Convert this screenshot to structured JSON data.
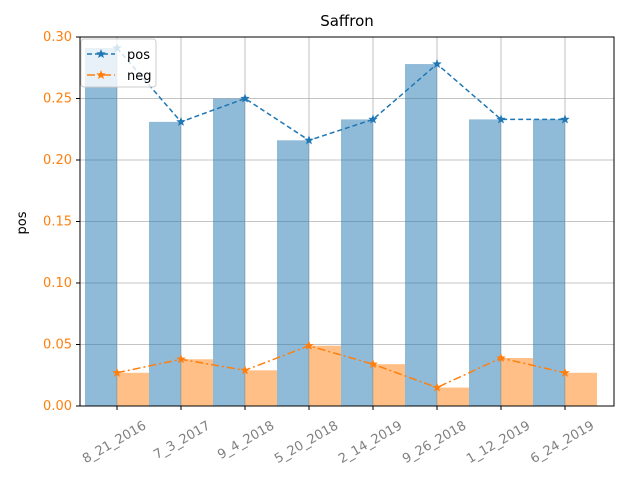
{
  "chart_data": {
    "type": "bar",
    "title": "Saffron",
    "xlabel": "",
    "ylabel": "pos",
    "ylim": [
      0,
      0.3
    ],
    "yticks": [
      "0.00",
      "0.05",
      "0.10",
      "0.15",
      "0.20",
      "0.25",
      "0.30"
    ],
    "grid": true,
    "legend_position": "top-left",
    "categories": [
      "8_21_2016",
      "7_3_2017",
      "9_4_2018",
      "5_20_2018",
      "2_14_2019",
      "9_26_2018",
      "1_12_2019",
      "6_24_2019"
    ],
    "series": [
      {
        "name": "pos",
        "values": [
          0.291,
          0.231,
          0.25,
          0.216,
          0.233,
          0.278,
          0.233,
          0.233
        ],
        "color": "#1f77b4",
        "line_style": "dashed"
      },
      {
        "name": "neg",
        "values": [
          0.027,
          0.038,
          0.029,
          0.049,
          0.034,
          0.015,
          0.039,
          0.027
        ],
        "color": "#ff7f0e",
        "line_style": "dashdot"
      }
    ]
  }
}
